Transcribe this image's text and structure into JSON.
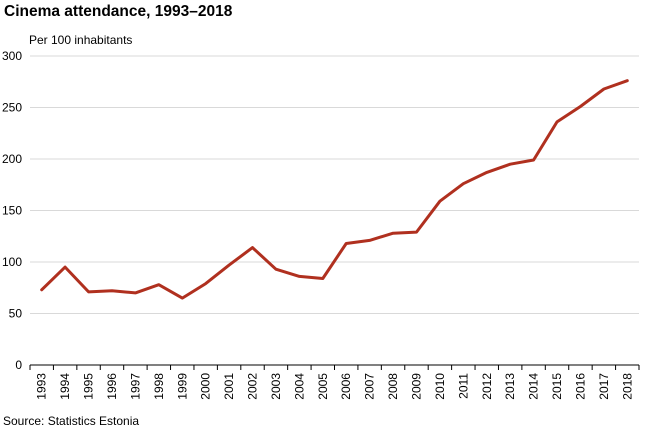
{
  "title": "Cinema attendance, 1993–2018",
  "unit_label": "Per 100 inhabitants",
  "source": "Source: Statistics Estonia",
  "colors": {
    "line": "#b0301f",
    "grid": "#d9d9d9",
    "axis": "#000000"
  },
  "chart_data": {
    "type": "line",
    "title": "Cinema attendance, 1993–2018",
    "ylabel": "Per 100 inhabitants",
    "xlabel": "",
    "ylim": [
      0,
      300
    ],
    "yticks": [
      0,
      50,
      100,
      150,
      200,
      250,
      300
    ],
    "grid": true,
    "categories": [
      "1993",
      "1994",
      "1995",
      "1996",
      "1997",
      "1998",
      "1999",
      "2000",
      "2001",
      "2002",
      "2003",
      "2004",
      "2005",
      "2006",
      "2007",
      "2008",
      "2009",
      "2010",
      "2011",
      "2012",
      "2013",
      "2014",
      "2015",
      "2016",
      "2017",
      "2018"
    ],
    "series": [
      {
        "values": [
          73,
          95,
          71,
          72,
          70,
          78,
          65,
          79,
          97,
          114,
          93,
          86,
          84,
          118,
          121,
          128,
          129,
          159,
          176,
          187,
          195,
          199,
          236,
          251,
          268,
          276
        ]
      }
    ]
  }
}
